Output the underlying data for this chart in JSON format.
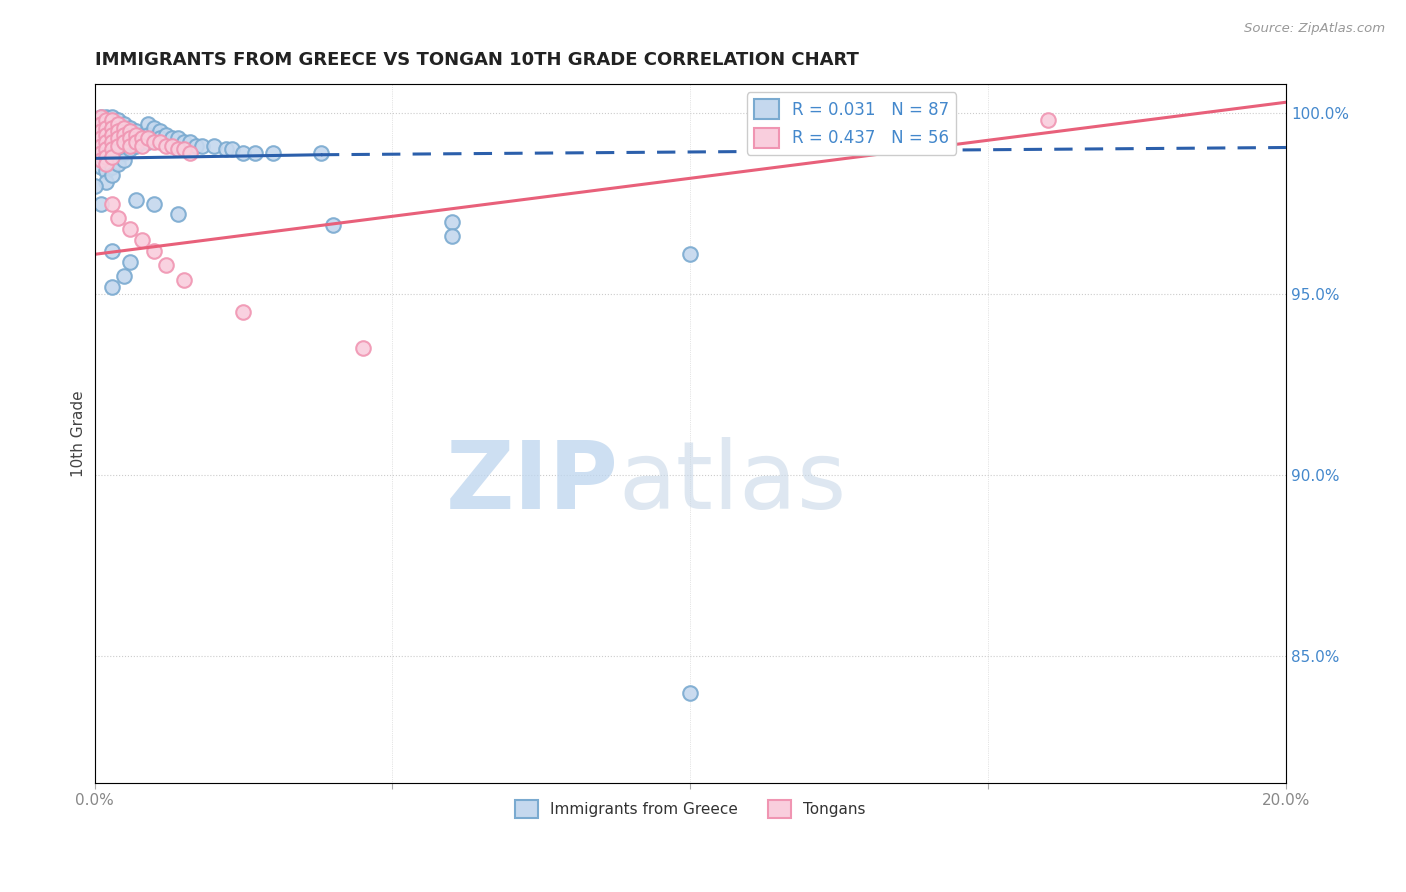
{
  "title": "IMMIGRANTS FROM GREECE VS TONGAN 10TH GRADE CORRELATION CHART",
  "source_text": "Source: ZipAtlas.com",
  "ylabel": "10th Grade",
  "xlim": [
    0.0,
    0.2
  ],
  "ylim": [
    0.815,
    1.008
  ],
  "xtick_positions": [
    0.0,
    0.05,
    0.1,
    0.15,
    0.2
  ],
  "xtick_labels": [
    "0.0%",
    "",
    "",
    "",
    "20.0%"
  ],
  "ytick_labels_right": [
    "85.0%",
    "90.0%",
    "95.0%",
    "100.0%"
  ],
  "ytick_vals_right": [
    0.85,
    0.9,
    0.95,
    1.0
  ],
  "legend1_label": "R = 0.031   N = 87",
  "legend2_label": "R = 0.437   N = 56",
  "legend_bottom": [
    "Immigrants from Greece",
    "Tongans"
  ],
  "blue_marker_face": "#C5D8EE",
  "blue_marker_edge": "#7AAAD0",
  "pink_marker_face": "#F9CEDD",
  "pink_marker_edge": "#F095B2",
  "blue_line_color": "#2B5FAB",
  "pink_line_color": "#E8607A",
  "blue_scatter": [
    [
      0.0,
      0.993
    ],
    [
      0.0,
      0.99
    ],
    [
      0.0,
      0.988
    ],
    [
      0.001,
      0.999
    ],
    [
      0.001,
      0.997
    ],
    [
      0.001,
      0.995
    ],
    [
      0.001,
      0.993
    ],
    [
      0.001,
      0.991
    ],
    [
      0.001,
      0.989
    ],
    [
      0.001,
      0.987
    ],
    [
      0.001,
      0.985
    ],
    [
      0.002,
      0.999
    ],
    [
      0.002,
      0.997
    ],
    [
      0.002,
      0.995
    ],
    [
      0.002,
      0.993
    ],
    [
      0.002,
      0.992
    ],
    [
      0.002,
      0.99
    ],
    [
      0.002,
      0.988
    ],
    [
      0.002,
      0.986
    ],
    [
      0.002,
      0.984
    ],
    [
      0.002,
      0.981
    ],
    [
      0.003,
      0.999
    ],
    [
      0.003,
      0.997
    ],
    [
      0.003,
      0.995
    ],
    [
      0.003,
      0.993
    ],
    [
      0.003,
      0.991
    ],
    [
      0.003,
      0.989
    ],
    [
      0.003,
      0.987
    ],
    [
      0.003,
      0.985
    ],
    [
      0.003,
      0.983
    ],
    [
      0.004,
      0.998
    ],
    [
      0.004,
      0.996
    ],
    [
      0.004,
      0.994
    ],
    [
      0.004,
      0.992
    ],
    [
      0.004,
      0.99
    ],
    [
      0.004,
      0.988
    ],
    [
      0.004,
      0.986
    ],
    [
      0.005,
      0.997
    ],
    [
      0.005,
      0.995
    ],
    [
      0.005,
      0.993
    ],
    [
      0.005,
      0.991
    ],
    [
      0.005,
      0.989
    ],
    [
      0.005,
      0.987
    ],
    [
      0.006,
      0.996
    ],
    [
      0.006,
      0.994
    ],
    [
      0.006,
      0.992
    ],
    [
      0.006,
      0.99
    ],
    [
      0.007,
      0.995
    ],
    [
      0.007,
      0.993
    ],
    [
      0.007,
      0.991
    ],
    [
      0.008,
      0.994
    ],
    [
      0.008,
      0.992
    ],
    [
      0.009,
      0.997
    ],
    [
      0.009,
      0.994
    ],
    [
      0.009,
      0.992
    ],
    [
      0.01,
      0.996
    ],
    [
      0.01,
      0.993
    ],
    [
      0.011,
      0.995
    ],
    [
      0.011,
      0.993
    ],
    [
      0.012,
      0.994
    ],
    [
      0.013,
      0.993
    ],
    [
      0.014,
      0.993
    ],
    [
      0.015,
      0.992
    ],
    [
      0.016,
      0.992
    ],
    [
      0.017,
      0.991
    ],
    [
      0.018,
      0.991
    ],
    [
      0.02,
      0.991
    ],
    [
      0.022,
      0.99
    ],
    [
      0.023,
      0.99
    ],
    [
      0.025,
      0.989
    ],
    [
      0.027,
      0.989
    ],
    [
      0.03,
      0.989
    ],
    [
      0.038,
      0.989
    ],
    [
      0.06,
      0.97
    ],
    [
      0.007,
      0.976
    ],
    [
      0.01,
      0.975
    ],
    [
      0.014,
      0.972
    ],
    [
      0.04,
      0.969
    ],
    [
      0.06,
      0.966
    ],
    [
      0.1,
      0.961
    ],
    [
      0.1,
      0.84
    ],
    [
      0.003,
      0.962
    ],
    [
      0.006,
      0.959
    ],
    [
      0.005,
      0.955
    ],
    [
      0.003,
      0.952
    ],
    [
      0.001,
      0.975
    ],
    [
      0.0,
      0.98
    ]
  ],
  "pink_scatter": [
    [
      0.0,
      0.998
    ],
    [
      0.0,
      0.996
    ],
    [
      0.0,
      0.994
    ],
    [
      0.001,
      0.999
    ],
    [
      0.001,
      0.997
    ],
    [
      0.001,
      0.995
    ],
    [
      0.001,
      0.993
    ],
    [
      0.001,
      0.991
    ],
    [
      0.001,
      0.989
    ],
    [
      0.001,
      0.987
    ],
    [
      0.002,
      0.998
    ],
    [
      0.002,
      0.996
    ],
    [
      0.002,
      0.994
    ],
    [
      0.002,
      0.992
    ],
    [
      0.002,
      0.99
    ],
    [
      0.002,
      0.988
    ],
    [
      0.002,
      0.986
    ],
    [
      0.003,
      0.998
    ],
    [
      0.003,
      0.996
    ],
    [
      0.003,
      0.994
    ],
    [
      0.003,
      0.992
    ],
    [
      0.003,
      0.99
    ],
    [
      0.003,
      0.988
    ],
    [
      0.004,
      0.997
    ],
    [
      0.004,
      0.995
    ],
    [
      0.004,
      0.993
    ],
    [
      0.004,
      0.991
    ],
    [
      0.005,
      0.996
    ],
    [
      0.005,
      0.994
    ],
    [
      0.005,
      0.992
    ],
    [
      0.006,
      0.995
    ],
    [
      0.006,
      0.993
    ],
    [
      0.006,
      0.991
    ],
    [
      0.007,
      0.994
    ],
    [
      0.007,
      0.992
    ],
    [
      0.008,
      0.993
    ],
    [
      0.008,
      0.991
    ],
    [
      0.009,
      0.993
    ],
    [
      0.01,
      0.992
    ],
    [
      0.011,
      0.992
    ],
    [
      0.012,
      0.991
    ],
    [
      0.013,
      0.991
    ],
    [
      0.014,
      0.99
    ],
    [
      0.015,
      0.99
    ],
    [
      0.016,
      0.989
    ],
    [
      0.003,
      0.975
    ],
    [
      0.004,
      0.971
    ],
    [
      0.006,
      0.968
    ],
    [
      0.008,
      0.965
    ],
    [
      0.01,
      0.962
    ],
    [
      0.012,
      0.958
    ],
    [
      0.015,
      0.954
    ],
    [
      0.025,
      0.945
    ],
    [
      0.045,
      0.935
    ],
    [
      0.12,
      0.996
    ],
    [
      0.16,
      0.998
    ]
  ],
  "blue_line_solid": [
    [
      0.0,
      0.9875
    ],
    [
      0.038,
      0.9885
    ]
  ],
  "blue_line_dashed": [
    [
      0.038,
      0.9885
    ],
    [
      0.2,
      0.9905
    ]
  ],
  "pink_line": [
    [
      0.0,
      0.961
    ],
    [
      0.2,
      1.003
    ]
  ],
  "watermark_zip": "ZIP",
  "watermark_atlas": "atlas",
  "background_color": "#FFFFFF",
  "plot_bg": "#FFFFFF",
  "title_color": "#222222",
  "axis_label_color": "#444444",
  "tick_color_right": "#4488CC",
  "tick_color_x": "#888888",
  "grid_color": "#CCCCCC",
  "title_fontsize": 13,
  "axis_fontsize": 11,
  "tick_fontsize": 11
}
